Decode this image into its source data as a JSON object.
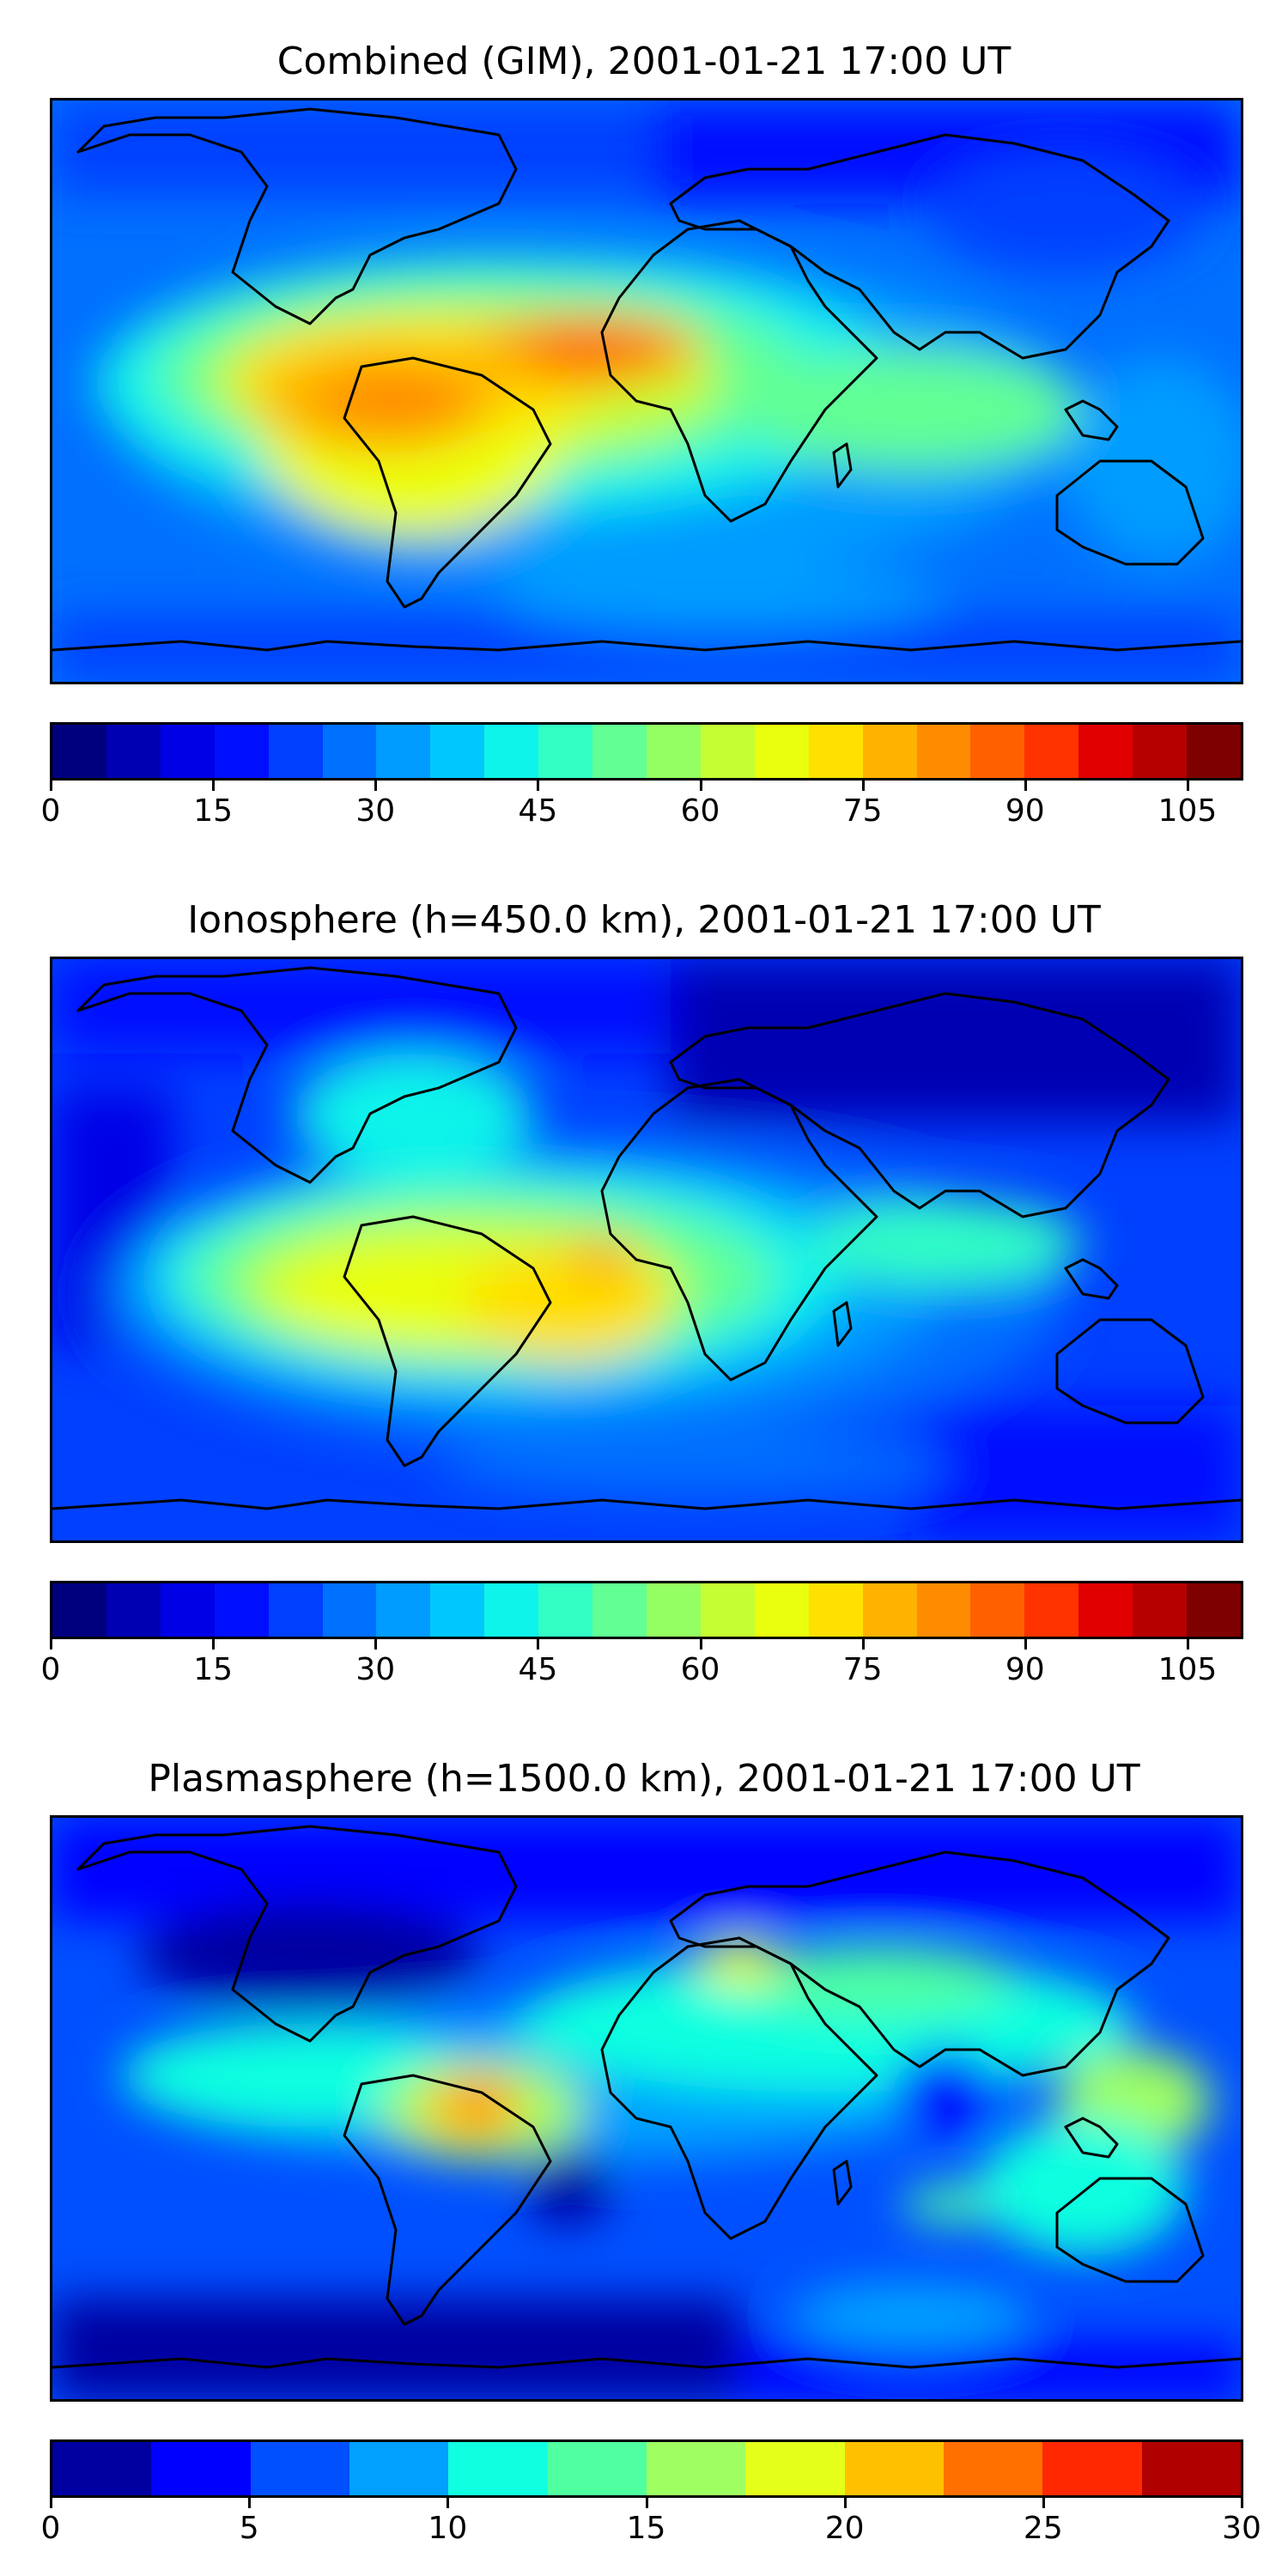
{
  "panels": [
    {
      "title": "Combined (GIM), 2001-01-21 17:00 UT",
      "colorbar": {
        "ticks": [
          "0",
          "15",
          "30",
          "45",
          "60",
          "75",
          "90",
          "105"
        ],
        "tick_values": [
          0,
          15,
          30,
          45,
          60,
          75,
          90,
          105
        ],
        "vmin": 0,
        "vmax": 110,
        "levels": 22,
        "colors": [
          "#00007f",
          "#0000b2",
          "#0000e6",
          "#0010ff",
          "#0040ff",
          "#0070ff",
          "#009cff",
          "#00c8ff",
          "#0ff4ea",
          "#33ffc4",
          "#62ff94",
          "#94ff62",
          "#c4ff33",
          "#eaff0d",
          "#ffe000",
          "#ffb200",
          "#ff8c00",
          "#ff6100",
          "#ff3300",
          "#e00000",
          "#b60000",
          "#7f0000"
        ]
      }
    },
    {
      "title": "Ionosphere  (h=450.0 km), 2001-01-21 17:00 UT",
      "colorbar": {
        "ticks": [
          "0",
          "15",
          "30",
          "45",
          "60",
          "75",
          "90",
          "105"
        ],
        "tick_values": [
          0,
          15,
          30,
          45,
          60,
          75,
          90,
          105
        ],
        "vmin": 0,
        "vmax": 110,
        "levels": 22,
        "colors": [
          "#00007f",
          "#0000b2",
          "#0000e6",
          "#0010ff",
          "#0040ff",
          "#0070ff",
          "#009cff",
          "#00c8ff",
          "#0ff4ea",
          "#33ffc4",
          "#62ff94",
          "#94ff62",
          "#c4ff33",
          "#eaff0d",
          "#ffe000",
          "#ffb200",
          "#ff8c00",
          "#ff6100",
          "#ff3300",
          "#e00000",
          "#b60000",
          "#7f0000"
        ]
      }
    },
    {
      "title": "Plasmasphere (h=1500.0 km), 2001-01-21 17:00 UT",
      "colorbar": {
        "ticks": [
          "0",
          "5",
          "10",
          "15",
          "20",
          "25",
          "30"
        ],
        "tick_values": [
          0,
          5,
          10,
          15,
          20,
          25,
          30
        ],
        "vmin": 0,
        "vmax": 30,
        "levels": 12,
        "colors": [
          "#0000a0",
          "#0000ff",
          "#0050ff",
          "#00a0ff",
          "#10ffe0",
          "#50ffa0",
          "#a0ff60",
          "#e4ff1a",
          "#ffc000",
          "#ff7000",
          "#ff2800",
          "#b00000"
        ]
      }
    }
  ]
}
